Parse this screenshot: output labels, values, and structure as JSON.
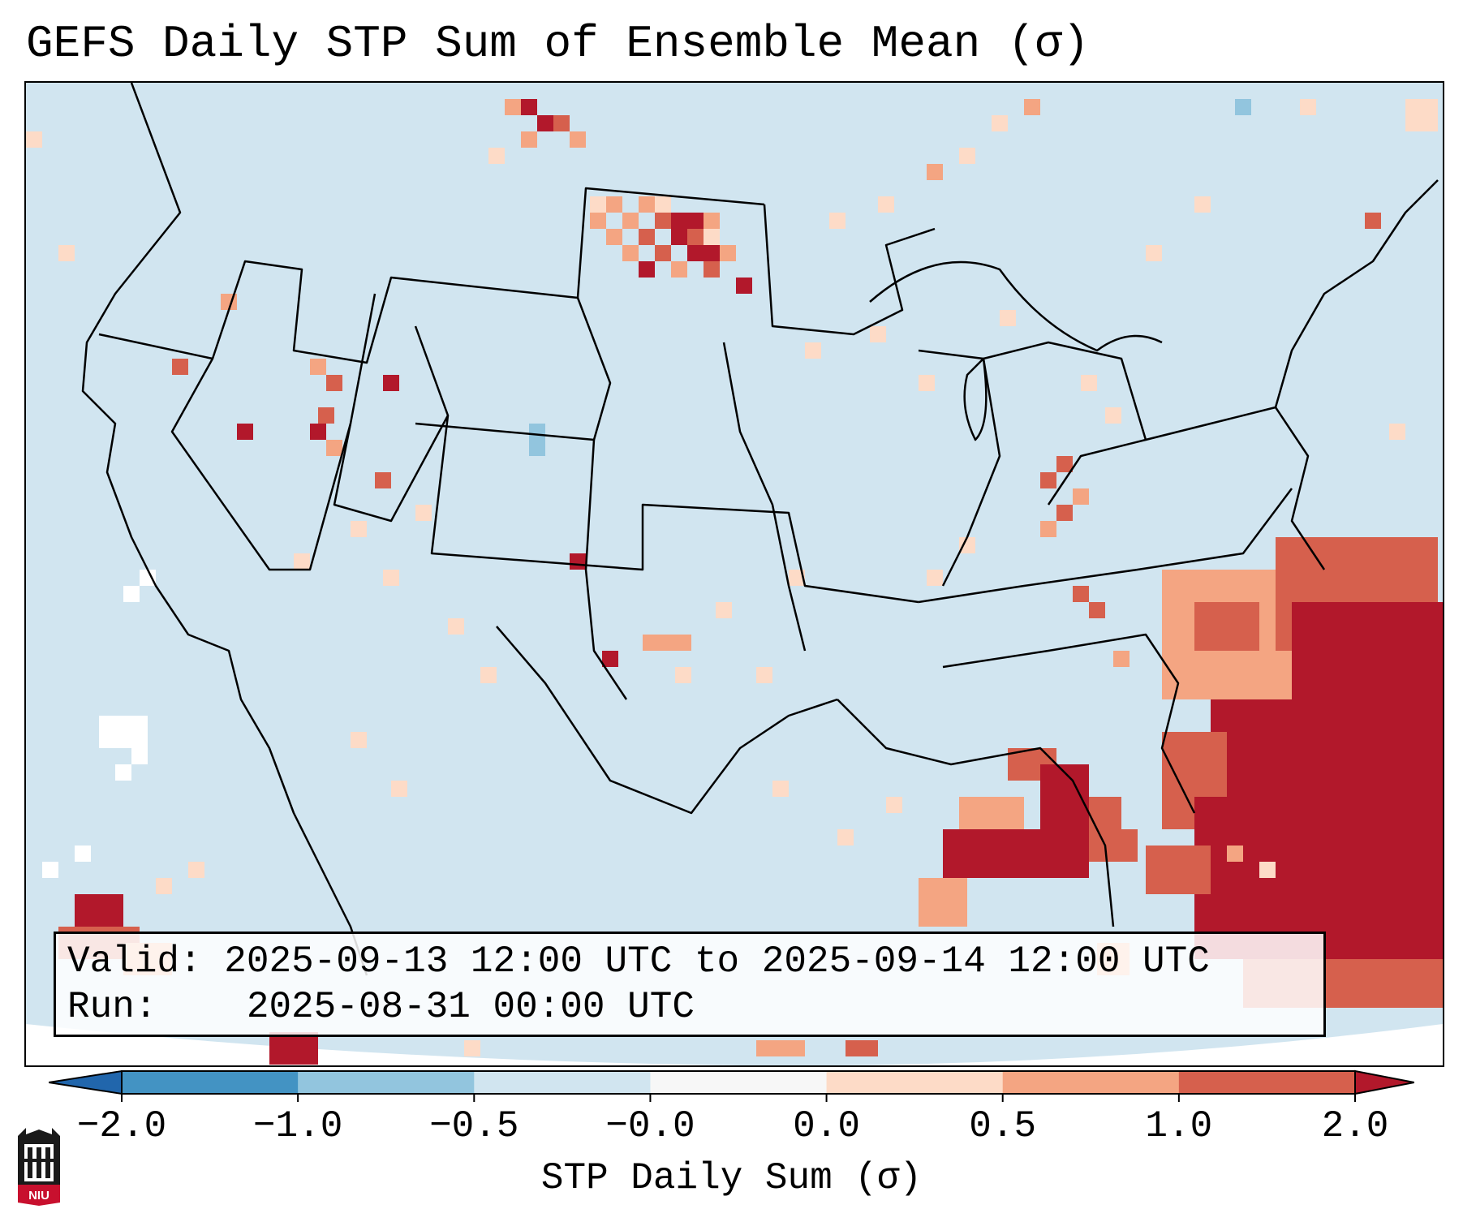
{
  "title": "GEFS Daily STP Sum of Ensemble Mean (σ)",
  "info": {
    "valid_label": "Valid:",
    "valid_value": "2025-09-13 12:00 UTC to 2025-09-14 12:00 UTC",
    "run_label": "Run:",
    "run_value": "2025-08-31 00:00 UTC"
  },
  "colorbar": {
    "label": "STP Daily Sum (σ)",
    "ticks": [
      "−2.0",
      "−1.0",
      "−0.5",
      "−0.0",
      "0.0",
      "0.5",
      "1.0",
      "2.0"
    ],
    "bins": [
      {
        "range": "< -2.0",
        "color": "#2166ac"
      },
      {
        "range": "-2.0 to -1.0",
        "color": "#4393c3"
      },
      {
        "range": "-1.0 to -0.5",
        "color": "#92c5de"
      },
      {
        "range": "-0.5 to -0.0",
        "color": "#d1e5f0"
      },
      {
        "range": "-0.0 to 0.0",
        "color": "#f7f7f7"
      },
      {
        "range": "0.0 to 0.5",
        "color": "#fddbc7"
      },
      {
        "range": "0.5 to 1.0",
        "color": "#f4a582"
      },
      {
        "range": "1.0 to 2.0",
        "color": "#d6604d"
      },
      {
        "range": "> 2.0",
        "color": "#b2182b"
      }
    ]
  },
  "logo": {
    "text": "NIU",
    "color": "#c8102e"
  }
}
